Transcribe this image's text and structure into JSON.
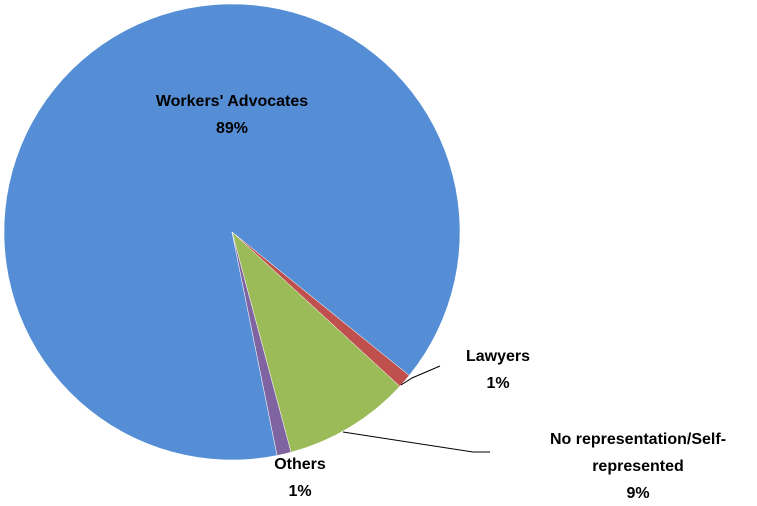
{
  "chart_data": {
    "type": "pie",
    "categories": [
      "Workers' Advocates",
      "Lawyers",
      "No representation/Self-represented",
      "Others"
    ],
    "values": [
      89,
      1,
      9,
      1
    ],
    "value_labels": [
      "89%",
      "1%",
      "9%",
      "1%"
    ],
    "colors": [
      "#558ed5",
      "#c0504d",
      "#9bbb59",
      "#8064a2"
    ]
  }
}
